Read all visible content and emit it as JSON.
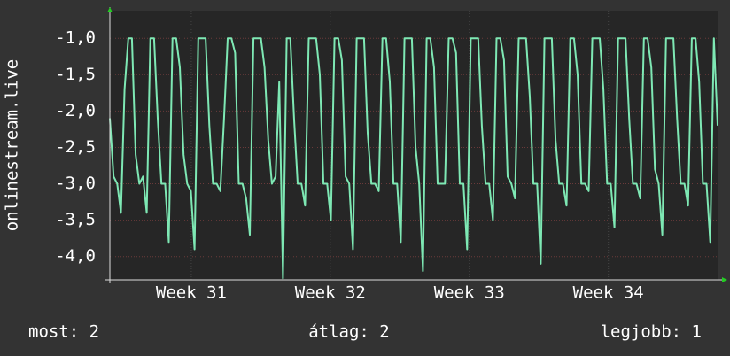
{
  "chart_data": {
    "type": "line",
    "y_label": "onlinestream.live",
    "series": [
      {
        "name": "onlinestream.live",
        "color": "#7ee8b4",
        "values": [
          -2.1,
          -2.9,
          -3,
          -3.4,
          -1.7,
          -1,
          -1,
          -2.6,
          -3,
          -2.9,
          -3.4,
          -1,
          -1,
          -2.1,
          -3,
          -3,
          -3.8,
          -1,
          -1,
          -1.4,
          -2.6,
          -3,
          -3.1,
          -3.9,
          -1,
          -1,
          -1,
          -2.2,
          -3,
          -3,
          -3.1,
          -2.1,
          -1,
          -1,
          -1.2,
          -3,
          -3,
          -3.2,
          -3.7,
          -1,
          -1,
          -1,
          -1.4,
          -2.4,
          -3,
          -2.9,
          -1.6,
          -4.3,
          -1,
          -1,
          -2.1,
          -3,
          -3,
          -3.3,
          -1,
          -1,
          -1,
          -1.5,
          -3,
          -3,
          -3.5,
          -1,
          -1,
          -1.3,
          -2.9,
          -3,
          -3.9,
          -1,
          -1,
          -1,
          -2.3,
          -3,
          -3,
          -3.1,
          -1,
          -1,
          -1.6,
          -3,
          -3,
          -3.8,
          -1,
          -1,
          -1,
          -2.5,
          -3,
          -4.2,
          -1,
          -1,
          -1.4,
          -3,
          -3,
          -3,
          -1,
          -1,
          -1.2,
          -3,
          -3,
          -3.9,
          -1,
          -1,
          -1,
          -2.2,
          -3,
          -3,
          -3.5,
          -1,
          -1,
          -1.3,
          -2.9,
          -3,
          -3.2,
          -1,
          -1,
          -1,
          -1.8,
          -3,
          -3,
          -4.1,
          -1,
          -1,
          -1,
          -2.4,
          -3,
          -3,
          -3.3,
          -1,
          -1,
          -1.5,
          -3,
          -3,
          -3.1,
          -1,
          -1,
          -1,
          -1.7,
          -3,
          -3,
          -3.6,
          -1,
          -1,
          -1,
          -2.1,
          -3,
          -3,
          -3.2,
          -1,
          -1,
          -1.4,
          -2.8,
          -3,
          -3.7,
          -1,
          -1,
          -1,
          -2.1,
          -3,
          -3,
          -3.3,
          -1,
          -1,
          -1.6,
          -3,
          -3,
          -3.8,
          -1,
          -2.2
        ]
      }
    ],
    "xlim": [
      0,
      30.6
    ],
    "xticks": [
      {
        "value": 4.1,
        "label": "Week 31"
      },
      {
        "value": 11.1,
        "label": "Week 32"
      },
      {
        "value": 18.1,
        "label": "Week 33"
      },
      {
        "value": 25.1,
        "label": "Week 34"
      }
    ],
    "ylim": [
      -4.32,
      -0.62
    ],
    "yticks": [
      {
        "value": -1,
        "label": "-1,0"
      },
      {
        "value": -1.5,
        "label": "-1,5"
      },
      {
        "value": -2,
        "label": "-2,0"
      },
      {
        "value": -2.5,
        "label": "-2,5"
      },
      {
        "value": -3,
        "label": "-3,0"
      },
      {
        "value": -3.5,
        "label": "-3,5"
      },
      {
        "value": -4,
        "label": "-4,0"
      }
    ],
    "grid": true,
    "stats": [
      "most: 2",
      "átlag: 2",
      "legjobb: 1"
    ]
  }
}
